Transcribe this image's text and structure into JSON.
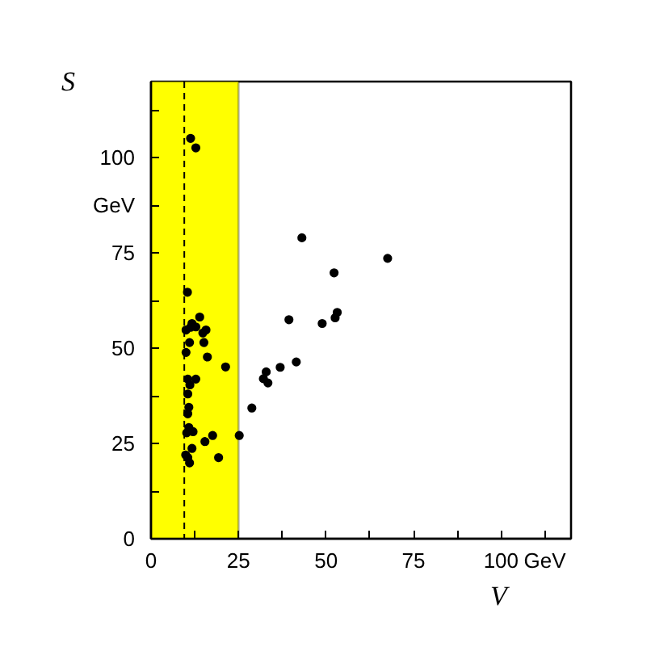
{
  "chart_data": {
    "type": "scatter",
    "xlabel": "V",
    "ylabel": "S",
    "x": [
      11.3,
      12.8,
      10.4,
      13.9,
      11.7,
      12.8,
      10.0,
      11.3,
      14.8,
      15.7,
      11.0,
      15.1,
      10.0,
      16.1,
      21.3,
      10.5,
      12.8,
      11.1,
      10.5,
      10.8,
      10.5,
      10.8,
      10.2,
      12.0,
      17.6,
      15.4,
      11.7,
      9.9,
      10.5,
      11.0,
      19.3,
      25.2,
      28.8,
      32.9,
      32.1,
      33.4,
      36.9,
      41.5,
      39.4,
      48.9,
      52.6,
      53.2,
      52.3,
      43.1,
      67.6
    ],
    "values": [
      105.1,
      102.6,
      64.7,
      58.2,
      56.5,
      55.6,
      54.8,
      55.5,
      54.0,
      54.8,
      51.5,
      51.5,
      48.9,
      47.7,
      45.1,
      41.9,
      41.9,
      40.4,
      38.0,
      34.5,
      32.8,
      29.2,
      27.8,
      28.1,
      27.1,
      25.5,
      23.7,
      22.0,
      21.3,
      19.9,
      21.3,
      27.1,
      34.3,
      43.8,
      42.0,
      40.9,
      45.0,
      46.4,
      57.5,
      56.5,
      58.0,
      59.4,
      69.8,
      79.0,
      73.6
    ],
    "color": "#000000",
    "marker": "circle",
    "grid": false,
    "xlim": [
      0,
      120
    ],
    "ylim": [
      0,
      120
    ],
    "xticks": [
      0,
      {
        "value": 12.5,
        "label": null
      },
      25,
      {
        "value": 37.5,
        "label": null
      },
      50,
      {
        "value": 62.5,
        "label": null
      },
      75,
      {
        "value": 87.5,
        "label": null
      },
      100,
      {
        "value": 112.5,
        "label": "GeV"
      }
    ],
    "yticks": [
      0,
      {
        "value": 12.5,
        "label": null
      },
      25,
      {
        "value": 37.5,
        "label": null
      },
      50,
      {
        "value": 62.5,
        "label": null
      },
      75,
      {
        "value": 87.5,
        "label": "GeV"
      },
      100,
      {
        "value": 112.5,
        "label": null
      }
    ],
    "bands": [
      {
        "axis": "x",
        "from": 0,
        "to": 25,
        "color": "#ffff00"
      }
    ],
    "ref_lines": [
      {
        "axis": "x",
        "value": 9.5,
        "color": "#000000",
        "line_style": "dashed"
      }
    ]
  }
}
